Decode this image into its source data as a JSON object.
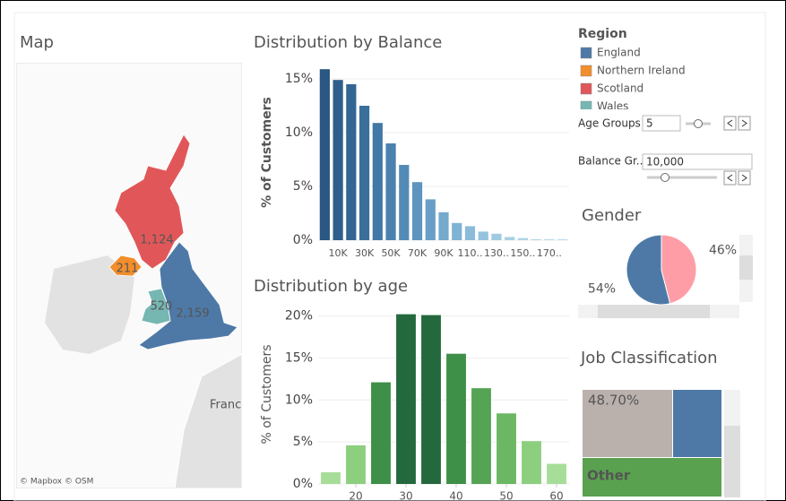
{
  "map": {
    "title": "Map",
    "attribution": "© Mapbox © OSM",
    "place_label": "France",
    "regions": [
      {
        "value": 2159,
        "label": "2,159"
      },
      {
        "value": 211,
        "label": "211"
      },
      {
        "value": 1124,
        "label": "1,124"
      },
      {
        "value": 520,
        "label": "520"
      }
    ]
  },
  "legend": {
    "title": "Region",
    "items": [
      {
        "name": "England",
        "color": "#4e79a7"
      },
      {
        "name": "Northern Ireland",
        "color": "#f28e2b"
      },
      {
        "name": "Scotland",
        "color": "#e15759"
      },
      {
        "name": "Wales",
        "color": "#76b7b2"
      }
    ]
  },
  "controls": {
    "age_groups": {
      "label": "Age Groups",
      "value": "5"
    },
    "balance_groups": {
      "label": "Balance Gr...",
      "value": "10,000"
    }
  },
  "chart_data": [
    {
      "type": "bar",
      "title": "Distribution by Balance",
      "y_label": "% of Customers",
      "categories": [
        null,
        "10K",
        null,
        "30K",
        null,
        "50K",
        null,
        "70K",
        null,
        "90K",
        null,
        "110..",
        null,
        "130..",
        null,
        "150..",
        null,
        "170..",
        null
      ],
      "values": [
        15.9,
        14.9,
        14.5,
        12.5,
        10.9,
        9.0,
        7.0,
        5.4,
        3.8,
        2.6,
        1.6,
        1.3,
        0.8,
        0.6,
        0.3,
        0.2,
        0.1,
        0.1,
        0.1
      ],
      "colors": [
        "#2a5783",
        "#2e5e8b",
        "#336693",
        "#3a6f9c",
        "#4278a5",
        "#4a81ae",
        "#548bb6",
        "#5e95bf",
        "#699fc6",
        "#75a9cd",
        "#80b2d3",
        "#8bbbd9",
        "#95c3de",
        "#9fcae2",
        "#a8d0e5",
        "#afd5e8",
        "#b5d9ea",
        "#bbdcec",
        "#c0dfed"
      ],
      "ylim": [
        0,
        16.5
      ],
      "yticks": [
        {
          "value": 0,
          "label": "0%"
        },
        {
          "value": 5,
          "label": "5%"
        },
        {
          "value": 10,
          "label": "10%"
        },
        {
          "value": 15,
          "label": "15%"
        }
      ]
    },
    {
      "type": "bar",
      "title": "Distribution by age",
      "y_label": "% of Customers",
      "x": [
        15,
        20,
        25,
        30,
        35,
        40,
        45,
        50,
        55,
        60
      ],
      "values": [
        1.4,
        4.6,
        12.1,
        20.2,
        20.1,
        15.5,
        11.4,
        8.4,
        5.1,
        2.4
      ],
      "colors": [
        "#a6dd98",
        "#8ccf7e",
        "#3e8f47",
        "#24693d",
        "#24693d",
        "#3e8f47",
        "#55a355",
        "#6cb764",
        "#8ccf7e",
        "#a6dd98"
      ],
      "xlim": [
        12.5,
        62.5
      ],
      "xticks": [
        20,
        30,
        40,
        50,
        60
      ],
      "ylim": [
        0,
        20.8
      ],
      "yticks": [
        {
          "value": 0,
          "label": "0%"
        },
        {
          "value": 5,
          "label": "5%"
        },
        {
          "value": 10,
          "label": "10%"
        },
        {
          "value": 15,
          "label": "15%"
        },
        {
          "value": 20,
          "label": "20%"
        }
      ]
    },
    {
      "type": "pie",
      "title": "Gender",
      "values": [
        54,
        46
      ],
      "value_labels": [
        "54%",
        "46%"
      ],
      "colors": [
        "#4e79a7",
        "#ff9da7"
      ]
    }
  ],
  "job_classification": {
    "title": "Job Classification",
    "tiles": [
      {
        "label": "48.70%",
        "value": 48.7,
        "color": "#bab0ac"
      },
      {
        "label": "Other",
        "color": "#59a14f"
      }
    ]
  }
}
